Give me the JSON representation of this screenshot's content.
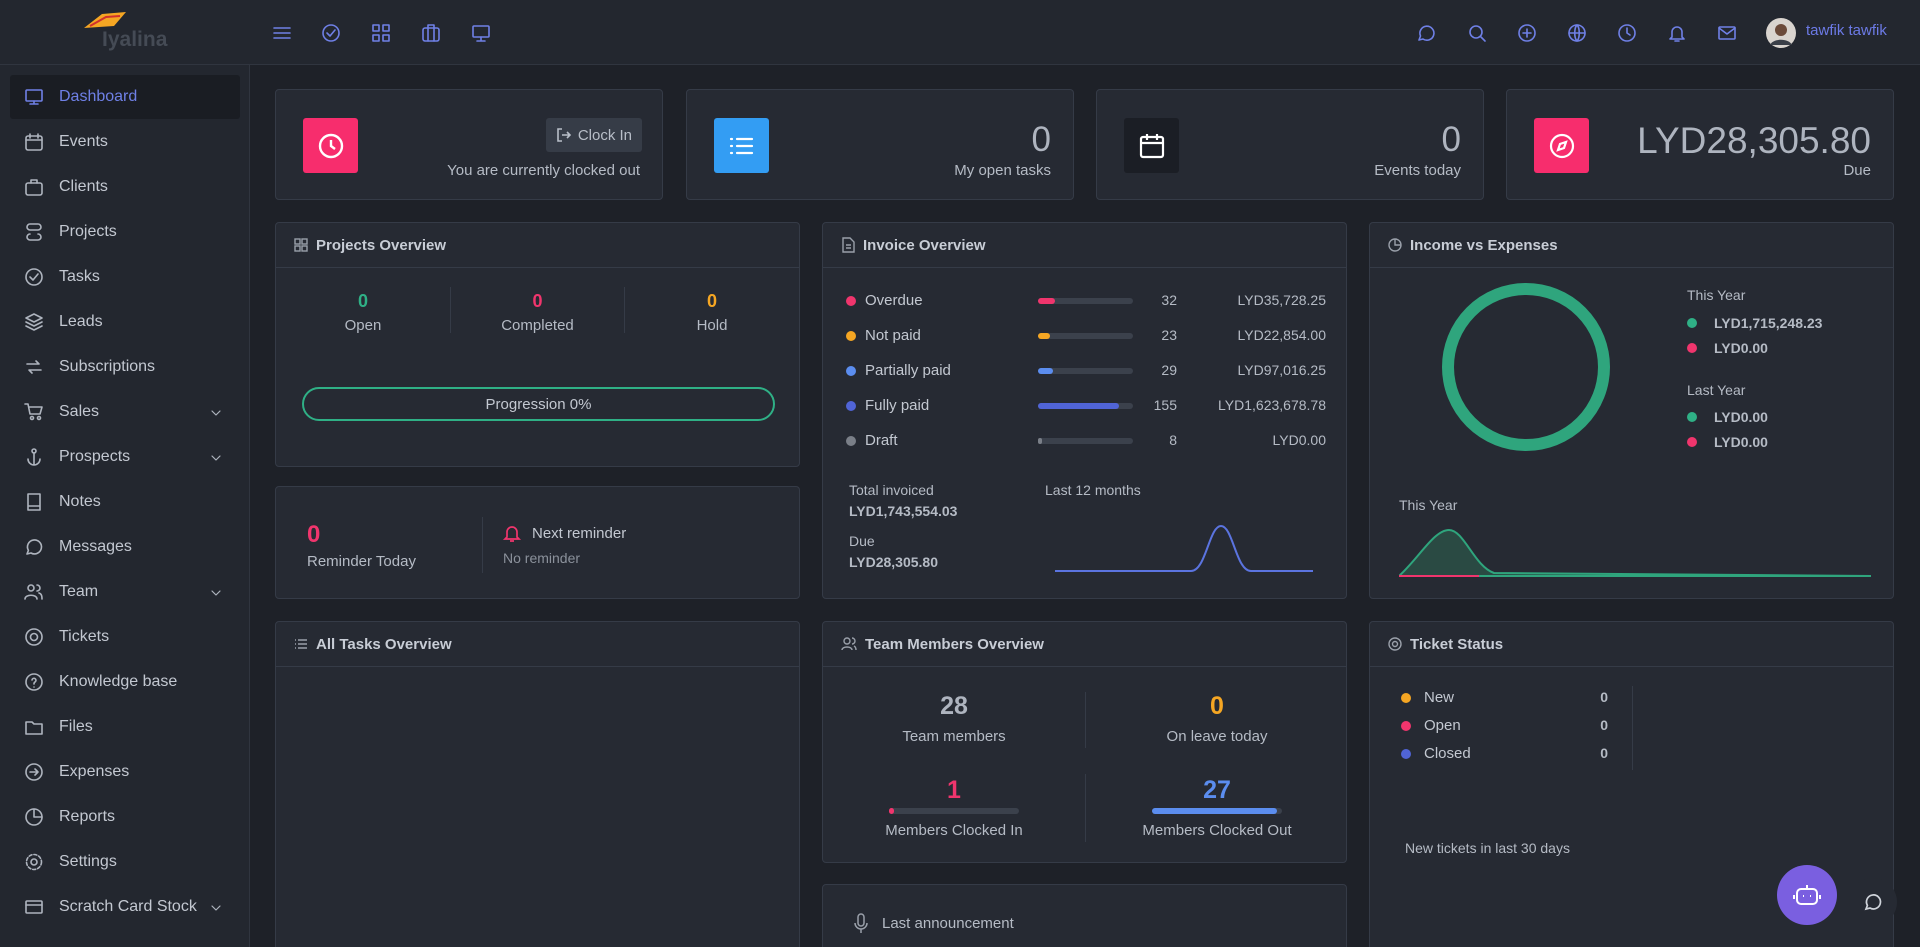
{
  "brand": {
    "name": "Iyalina"
  },
  "topbar": {
    "user": "tawfik tawfik"
  },
  "nav": [
    {
      "label": "Dashboard",
      "active": true,
      "submenu": false
    },
    {
      "label": "Events",
      "active": false,
      "submenu": false
    },
    {
      "label": "Clients",
      "active": false,
      "submenu": false
    },
    {
      "label": "Projects",
      "active": false,
      "submenu": false
    },
    {
      "label": "Tasks",
      "active": false,
      "submenu": false
    },
    {
      "label": "Leads",
      "active": false,
      "submenu": false
    },
    {
      "label": "Subscriptions",
      "active": false,
      "submenu": false
    },
    {
      "label": "Sales",
      "active": false,
      "submenu": true
    },
    {
      "label": "Prospects",
      "active": false,
      "submenu": true
    },
    {
      "label": "Notes",
      "active": false,
      "submenu": false
    },
    {
      "label": "Messages",
      "active": false,
      "submenu": false
    },
    {
      "label": "Team",
      "active": false,
      "submenu": true
    },
    {
      "label": "Tickets",
      "active": false,
      "submenu": false
    },
    {
      "label": "Knowledge base",
      "active": false,
      "submenu": false
    },
    {
      "label": "Files",
      "active": false,
      "submenu": false
    },
    {
      "label": "Expenses",
      "active": false,
      "submenu": false
    },
    {
      "label": "Reports",
      "active": false,
      "submenu": false
    },
    {
      "label": "Settings",
      "active": false,
      "submenu": false
    },
    {
      "label": "Scratch Card Stock",
      "active": false,
      "submenu": true
    }
  ],
  "stats": {
    "clock": {
      "button": "Clock In",
      "status": "You are currently clocked out"
    },
    "open_tasks": {
      "value": 0,
      "label": "My open tasks"
    },
    "events_today": {
      "value": 0,
      "label": "Events today"
    },
    "due": {
      "value": "LYD28,305.80",
      "label": "Due"
    }
  },
  "projects": {
    "title": "Projects Overview",
    "items": [
      {
        "value": 0,
        "label": "Open",
        "color": "#2fb086"
      },
      {
        "value": 0,
        "label": "Completed",
        "color": "#f0356d"
      },
      {
        "value": 0,
        "label": "Hold",
        "color": "#f5a623"
      }
    ],
    "progression": "Progression 0%"
  },
  "reminder": {
    "value": 0,
    "label": "Reminder Today",
    "next": "Next reminder",
    "none": "No reminder"
  },
  "invoice": {
    "title": "Invoice Overview",
    "rows": [
      {
        "name": "Overdue",
        "count": 32,
        "amount": "LYD35,728.25",
        "color": "#f0356d"
      },
      {
        "name": "Not paid",
        "count": 23,
        "amount": "LYD22,854.00",
        "color": "#f5a623"
      },
      {
        "name": "Partially paid",
        "count": 29,
        "amount": "LYD97,016.25",
        "color": "#5b8def"
      },
      {
        "name": "Fully paid",
        "count": 155,
        "amount": "LYD1,623,678.78",
        "color": "#5064d6"
      },
      {
        "name": "Draft",
        "count": 8,
        "amount": "LYD0.00",
        "color": "#7a7f88"
      }
    ],
    "total_label": "Total invoiced",
    "total": "LYD1,743,554.03",
    "due_label": "Due",
    "due": "LYD28,305.80",
    "chart_label": "Last 12 months"
  },
  "income": {
    "title": "Income vs Expenses",
    "this_year": {
      "label": "This Year",
      "income": "LYD1,715,248.23",
      "expenses": "LYD0.00"
    },
    "last_year": {
      "label": "Last Year",
      "income": "LYD0.00",
      "expenses": "LYD0.00"
    },
    "chart_label": "This Year"
  },
  "tasks": {
    "title": "All Tasks Overview"
  },
  "team": {
    "title": "Team Members Overview",
    "members": {
      "value": 28,
      "label": "Team members"
    },
    "leave": {
      "value": 0,
      "label": "On leave today"
    },
    "clocked_in": {
      "value": 1,
      "label": "Members Clocked In"
    },
    "clocked_out": {
      "value": 27,
      "label": "Members Clocked Out"
    }
  },
  "announcement": {
    "title": "Last announcement"
  },
  "tickets": {
    "title": "Ticket Status",
    "rows": [
      {
        "name": "New",
        "count": 0,
        "color": "#f5a623"
      },
      {
        "name": "Open",
        "count": 0,
        "color": "#f0356d"
      },
      {
        "name": "Closed",
        "count": 0,
        "color": "#5064d6"
      }
    ],
    "footer": "New tickets in last 30 days"
  }
}
